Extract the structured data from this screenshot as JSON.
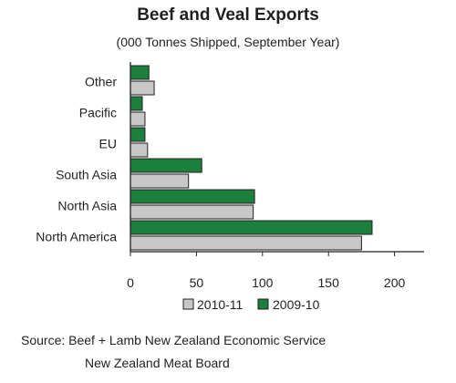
{
  "chart_data": {
    "type": "bar",
    "orientation": "horizontal",
    "title": "Beef and Veal Exports",
    "subtitle": "(000 Tonnes Shipped, September Year)",
    "categories": [
      "North America",
      "North Asia",
      "South Asia",
      "EU",
      "Pacific",
      "Other"
    ],
    "series": [
      {
        "name": "2010-11",
        "color": "#c8c8c8",
        "values": [
          175,
          93,
          44,
          13,
          11,
          18
        ]
      },
      {
        "name": "2009-10",
        "color": "#1b7f3e",
        "values": [
          183,
          94,
          54,
          11,
          9,
          14
        ]
      }
    ],
    "xlim": [
      0,
      220
    ],
    "xticks": [
      0,
      50,
      100,
      150,
      200
    ],
    "grid": false,
    "legend_position": "bottom"
  },
  "source": {
    "line1": "Source:  Beef + Lamb New Zealand  Economic Service",
    "line2": "New Zealand Meat Board"
  }
}
